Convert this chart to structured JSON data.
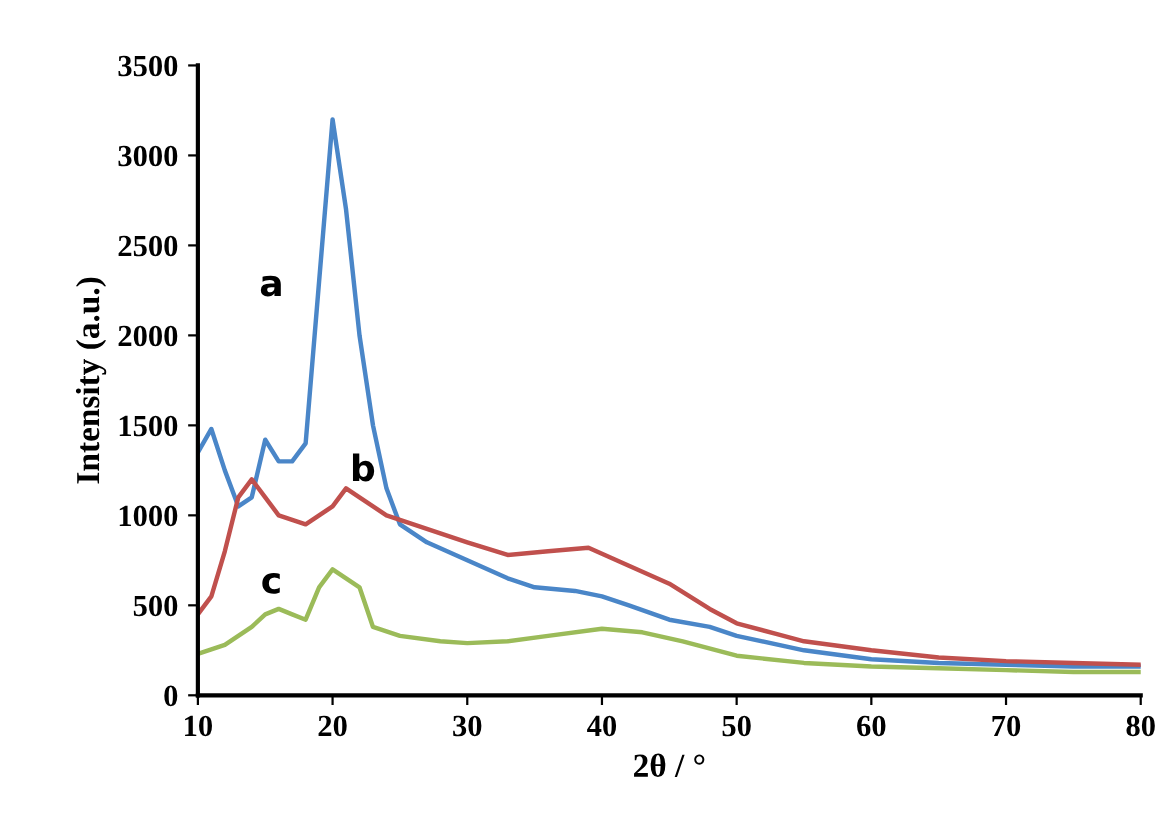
{
  "chart_data": {
    "type": "line",
    "xlabel": "2θ / °",
    "ylabel": "Intensity (a.u.)",
    "xlim": [
      10,
      80
    ],
    "xticks": [
      10,
      20,
      30,
      40,
      50,
      60,
      70,
      80
    ],
    "ylim": [
      0,
      3500
    ],
    "yticks": [
      0,
      500,
      1000,
      1500,
      2000,
      2500,
      3000,
      3500
    ],
    "grid": false,
    "legend": false,
    "marker": "none",
    "line_style": "solid",
    "series": [
      {
        "name": "a",
        "color": "#4a86c8",
        "x": [
          10,
          11,
          12,
          13,
          14,
          15,
          16,
          17,
          18,
          19,
          20,
          21,
          22,
          23,
          24,
          25,
          27,
          30,
          33,
          35,
          38,
          40,
          42,
          45,
          48,
          50,
          55,
          60,
          65,
          70,
          75,
          80
        ],
        "values": [
          1350,
          1480,
          1250,
          1050,
          1100,
          1420,
          1300,
          1300,
          1400,
          2300,
          3200,
          2700,
          2000,
          1500,
          1150,
          950,
          850,
          750,
          650,
          600,
          580,
          550,
          500,
          420,
          380,
          330,
          250,
          200,
          180,
          170,
          160,
          160
        ]
      },
      {
        "name": "b",
        "color": "#c0504d",
        "x": [
          10,
          11,
          12,
          13,
          14,
          15,
          16,
          18,
          19,
          20,
          21,
          22,
          24,
          26,
          28,
          30,
          33,
          36,
          39,
          42,
          45,
          48,
          50,
          53,
          55,
          60,
          65,
          70,
          75,
          80
        ],
        "values": [
          450,
          550,
          800,
          1100,
          1200,
          1100,
          1000,
          950,
          1000,
          1050,
          1150,
          1100,
          1000,
          950,
          900,
          850,
          780,
          800,
          820,
          720,
          620,
          480,
          400,
          340,
          300,
          250,
          210,
          190,
          180,
          170
        ]
      },
      {
        "name": "c",
        "color": "#9bbb59",
        "x": [
          10,
          12,
          14,
          15,
          16,
          17,
          18,
          19,
          20,
          21,
          22,
          23,
          25,
          28,
          30,
          33,
          36,
          40,
          43,
          46,
          50,
          55,
          60,
          65,
          70,
          75,
          80
        ],
        "values": [
          230,
          280,
          380,
          450,
          480,
          450,
          420,
          600,
          700,
          650,
          600,
          380,
          330,
          300,
          290,
          300,
          330,
          370,
          350,
          300,
          220,
          180,
          160,
          150,
          140,
          130,
          130
        ]
      }
    ]
  }
}
